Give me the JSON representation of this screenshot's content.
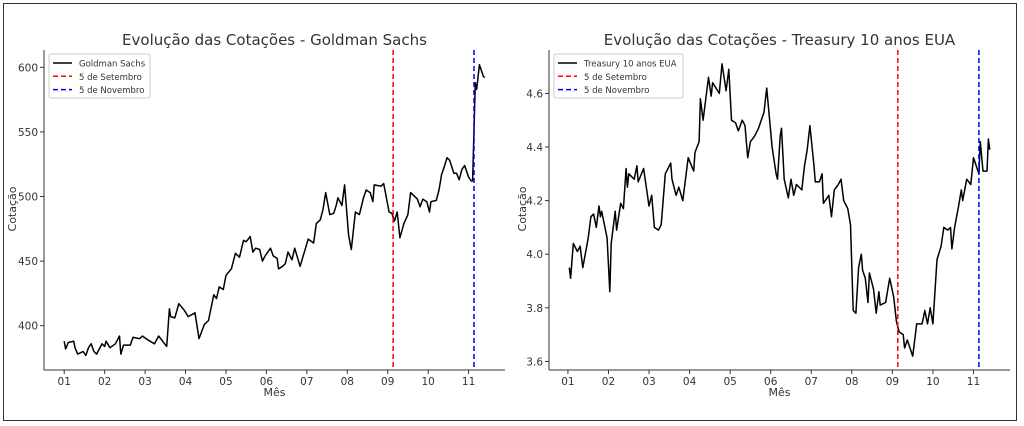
{
  "chart_data": [
    {
      "type": "line",
      "title": "Evolução das Cotações - Goldman Sachs",
      "xlabel": "Mês",
      "ylabel": "Cotação",
      "xlim": [
        "00-16",
        "11-28"
      ],
      "ylim": [
        365.7,
        613.4
      ],
      "xticks": [
        "01",
        "02",
        "03",
        "04",
        "05",
        "06",
        "07",
        "08",
        "09",
        "10",
        "11"
      ],
      "yticks": [
        400,
        450,
        500,
        550,
        600
      ],
      "grid": false,
      "legend_position": "top-left",
      "series": [
        {
          "name": "Goldman Sachs",
          "color": "#000000",
          "style": "solid",
          "x": [
            "01-01",
            "01-02",
            "01-04",
            "01-08",
            "01-09",
            "01-11",
            "01-15",
            "01-17",
            "01-19",
            "01-21",
            "01-23",
            "01-25",
            "01-29",
            "01-31",
            "02-02",
            "02-05",
            "02-09",
            "02-12",
            "02-13",
            "02-15",
            "02-20",
            "02-22",
            "02-27",
            "02-29",
            "03-03",
            "03-08",
            "03-11",
            "03-17",
            "03-19",
            "03-20",
            "03-23",
            "03-26",
            "03-30",
            "04-03",
            "04-08",
            "04-11",
            "04-15",
            "04-18",
            "04-22",
            "04-24",
            "04-26",
            "04-29",
            "05-01",
            "05-05",
            "05-08",
            "05-11",
            "05-14",
            "05-16",
            "05-19",
            "05-21",
            "05-23",
            "05-26",
            "05-28",
            "05-30",
            "06-04",
            "06-06",
            "06-09",
            "06-10",
            "06-13",
            "06-15",
            "06-17",
            "06-20",
            "06-22",
            "06-26",
            "06-30",
            "07-02",
            "07-06",
            "07-08",
            "07-11",
            "07-13",
            "07-15",
            "07-18",
            "07-21",
            "07-23",
            "07-24",
            "07-27",
            "07-29",
            "08-02",
            "08-04",
            "08-07",
            "08-10",
            "08-13",
            "08-15",
            "08-18",
            "08-20",
            "08-21",
            "08-26",
            "08-28",
            "09-02",
            "09-04",
            "09-06",
            "09-08",
            "09-10",
            "09-13",
            "09-16",
            "09-18",
            "09-23",
            "09-25",
            "09-27",
            "09-30",
            "10-02",
            "10-03",
            "10-07",
            "10-09",
            "10-11",
            "10-13",
            "10-15",
            "10-17",
            "10-20",
            "10-22",
            "10-24",
            "10-26",
            "10-28",
            "10-31",
            "11-03",
            "11-04",
            "11-06",
            "11-07",
            "11-09",
            "11-12",
            "11-13"
          ],
          "y": [
            388,
            382,
            387,
            388,
            383,
            378,
            380,
            377,
            383,
            386,
            380,
            378,
            386,
            384,
            388,
            383,
            386,
            392,
            378,
            385,
            385,
            391,
            390,
            392,
            389,
            386,
            392,
            384,
            413,
            407,
            406,
            417,
            412,
            407,
            410,
            390,
            401,
            404,
            424,
            421,
            430,
            428,
            439,
            444,
            456,
            453,
            466,
            465,
            469,
            457,
            460,
            459,
            450,
            454,
            460,
            454,
            452,
            444,
            446,
            448,
            457,
            451,
            460,
            446,
            460,
            467,
            464,
            479,
            482,
            490,
            503,
            486,
            487,
            494,
            499,
            493,
            509,
            470,
            459,
            488,
            486,
            499,
            505,
            503,
            496,
            509,
            508,
            510,
            488,
            487,
            481,
            488,
            468,
            479,
            486,
            503,
            498,
            492,
            498,
            496,
            488,
            496,
            497,
            505,
            517,
            523,
            530,
            528,
            518,
            518,
            513,
            521,
            524,
            515,
            512,
            512,
            588,
            583,
            602,
            593,
            592
          ]
        }
      ],
      "vlines": [
        {
          "name": "5 de Setembro",
          "x": "09-05",
          "color": "#ff0000",
          "style": "dashed"
        },
        {
          "name": "5 de Novembro",
          "x": "11-05",
          "color": "#0000ff",
          "style": "dashed"
        }
      ]
    },
    {
      "type": "line",
      "title": "Evolução das Cotações - Treasury 10 anos EUA",
      "xlabel": "Mês",
      "ylabel": "Cotação",
      "xlim": [
        "00-17",
        "11-28"
      ],
      "ylim": [
        3.568,
        4.762
      ],
      "xticks": [
        "01",
        "02",
        "03",
        "04",
        "05",
        "06",
        "07",
        "08",
        "09",
        "10",
        "11"
      ],
      "yticks": [
        "3.6",
        "3.8",
        "4.0",
        "4.2",
        "4.4",
        "4.6"
      ],
      "grid": false,
      "legend_position": "top-left",
      "series": [
        {
          "name": "Treasury 10 anos EUA",
          "color": "#000000",
          "style": "solid",
          "x": [
            "01-02",
            "01-03",
            "01-05",
            "01-08",
            "01-10",
            "01-12",
            "01-16",
            "01-18",
            "01-20",
            "01-22",
            "01-24",
            "01-25",
            "01-26",
            "01-30",
            "02-02",
            "02-03",
            "02-06",
            "02-07",
            "02-10",
            "02-12",
            "02-14",
            "02-15",
            "02-16",
            "02-20",
            "02-22",
            "02-23",
            "02-27",
            "02-29",
            "03-01",
            "03-03",
            "03-05",
            "03-08",
            "03-10",
            "03-13",
            "03-17",
            "03-18",
            "03-21",
            "03-23",
            "03-26",
            "03-30",
            "04-04",
            "04-05",
            "04-08",
            "04-09",
            "04-11",
            "04-15",
            "04-17",
            "04-18",
            "04-23",
            "04-25",
            "04-28",
            "04-30",
            "05-02",
            "05-05",
            "05-07",
            "05-10",
            "05-12",
            "05-14",
            "05-16",
            "05-19",
            "05-22",
            "05-26",
            "05-28",
            "06-02",
            "06-05",
            "06-06",
            "06-08",
            "06-09",
            "06-11",
            "06-14",
            "06-16",
            "06-18",
            "06-20",
            "06-24",
            "06-26",
            "06-28",
            "06-30",
            "07-03",
            "07-04",
            "07-07",
            "07-09",
            "07-10",
            "07-14",
            "07-16",
            "07-18",
            "07-21",
            "07-23",
            "07-25",
            "07-28",
            "07-30",
            "08-02",
            "08-04",
            "08-06",
            "08-08",
            "08-09",
            "08-11",
            "08-13",
            "08-14",
            "08-17",
            "08-19",
            "08-21",
            "08-22",
            "08-26",
            "08-27",
            "08-29",
            "09-02",
            "09-04",
            "09-06",
            "09-09",
            "09-10",
            "09-12",
            "09-16",
            "09-19",
            "09-23",
            "09-25",
            "09-27",
            "09-29",
            "10-01",
            "10-04",
            "10-07",
            "10-09",
            "10-12",
            "10-14",
            "10-15",
            "10-17",
            "10-20",
            "10-22",
            "10-23",
            "10-26",
            "10-29",
            "11-01",
            "11-05",
            "11-06",
            "11-08",
            "11-11",
            "11-12",
            "11-13"
          ],
          "y": [
            3.95,
            3.91,
            4.04,
            4.01,
            4.03,
            3.95,
            4.06,
            4.14,
            4.15,
            4.1,
            4.18,
            4.14,
            4.16,
            4.06,
            3.86,
            4.04,
            4.16,
            4.09,
            4.19,
            4.17,
            4.32,
            4.25,
            4.3,
            4.28,
            4.33,
            4.27,
            4.32,
            4.25,
            4.18,
            4.22,
            4.1,
            4.09,
            4.11,
            4.3,
            4.34,
            4.28,
            4.22,
            4.25,
            4.2,
            4.36,
            4.31,
            4.38,
            4.42,
            4.58,
            4.5,
            4.66,
            4.59,
            4.64,
            4.6,
            4.71,
            4.61,
            4.69,
            4.5,
            4.49,
            4.46,
            4.5,
            4.48,
            4.36,
            4.42,
            4.44,
            4.47,
            4.53,
            4.62,
            4.4,
            4.3,
            4.28,
            4.44,
            4.47,
            4.28,
            4.21,
            4.28,
            4.22,
            4.26,
            4.24,
            4.33,
            4.39,
            4.48,
            4.33,
            4.27,
            4.27,
            4.3,
            4.19,
            4.22,
            4.14,
            4.24,
            4.26,
            4.28,
            4.2,
            4.17,
            4.11,
            3.79,
            3.78,
            3.95,
            4.0,
            3.94,
            3.91,
            3.82,
            3.93,
            3.87,
            3.78,
            3.86,
            3.81,
            3.82,
            3.85,
            3.91,
            3.84,
            3.75,
            3.71,
            3.7,
            3.65,
            3.68,
            3.62,
            3.74,
            3.74,
            3.79,
            3.74,
            3.8,
            3.74,
            3.98,
            4.03,
            4.1,
            4.09,
            4.1,
            4.02,
            4.1,
            4.18,
            4.24,
            4.2,
            4.28,
            4.26,
            4.36,
            4.3,
            4.42,
            4.31,
            4.31,
            4.43,
            4.39
          ]
        }
      ],
      "vlines": [
        {
          "name": "5 de Setembro",
          "x": "09-05",
          "color": "#ff0000",
          "style": "dashed"
        },
        {
          "name": "5 de Novembro",
          "x": "11-05",
          "color": "#0000ff",
          "style": "dashed"
        }
      ]
    }
  ]
}
